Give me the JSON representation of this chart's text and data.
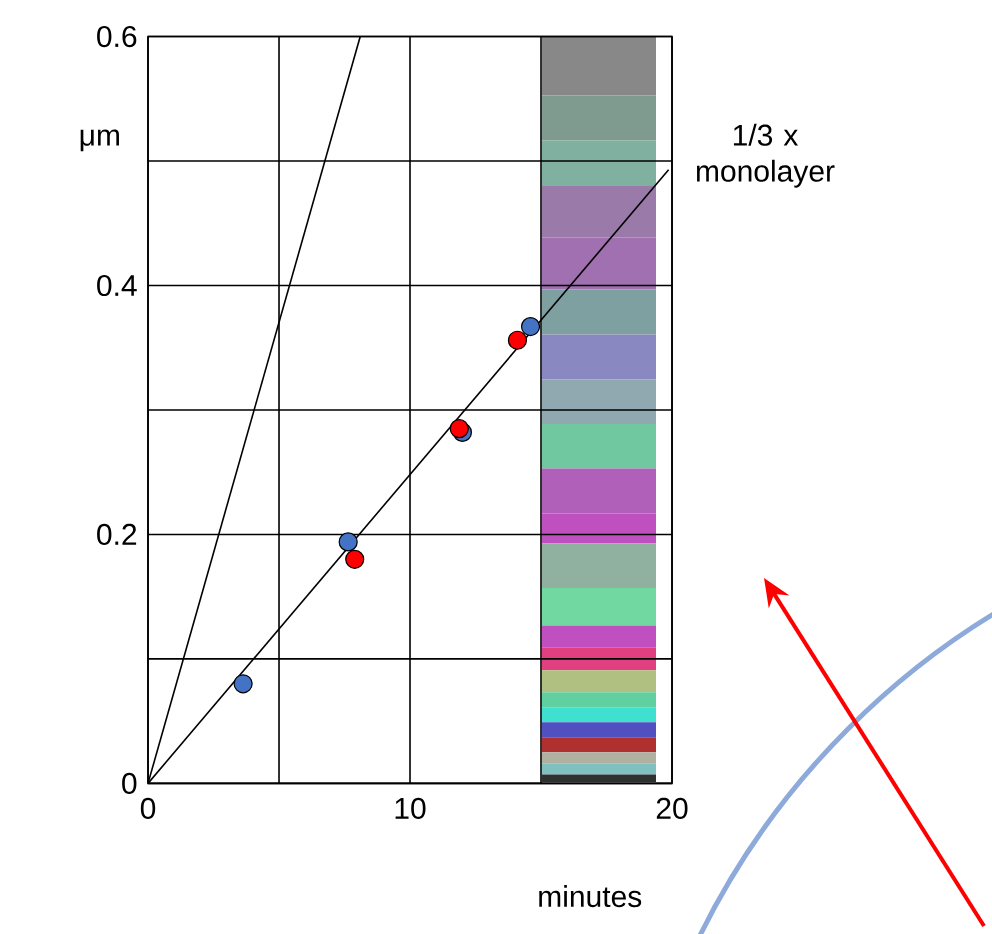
{
  "chart_data": {
    "type": "scatter",
    "xlabel": "minutes",
    "ylabel": "μm",
    "xlim": [
      0,
      20
    ],
    "ylim": [
      0,
      0.6
    ],
    "xticks": [
      0,
      {
        "value": 5,
        "label": null
      },
      10,
      {
        "value": 15,
        "label": null
      },
      20
    ],
    "yticks": [
      0,
      {
        "value": 0.1,
        "label": null
      },
      0.2,
      {
        "value": 0.3,
        "label": null
      },
      0.4,
      {
        "value": 0.5,
        "label": null
      },
      0.6
    ],
    "grid": true,
    "marker": "circle",
    "series": [
      {
        "type": "line",
        "marker": "none",
        "color": "#000000",
        "x": [
          0,
          19.87
        ],
        "values": [
          0,
          0.493
        ]
      },
      {
        "type": "line",
        "marker": "none",
        "color": "#000000",
        "x": [
          0,
          8.1
        ],
        "values": [
          0,
          0.6
        ]
      },
      {
        "color": "#4472c4",
        "x": [
          3.63,
          7.64,
          12.0,
          14.6
        ],
        "values": [
          0.08,
          0.194,
          0.282,
          0.367
        ]
      },
      {
        "color": "#ff0000",
        "x": [
          7.89,
          11.88,
          14.1
        ],
        "values": [
          0.18,
          0.285,
          0.356
        ]
      }
    ],
    "annotations": [
      {
        "text": "1/3 x monolayer",
        "x": 19.87,
        "y": 0.493
      }
    ]
  }
}
